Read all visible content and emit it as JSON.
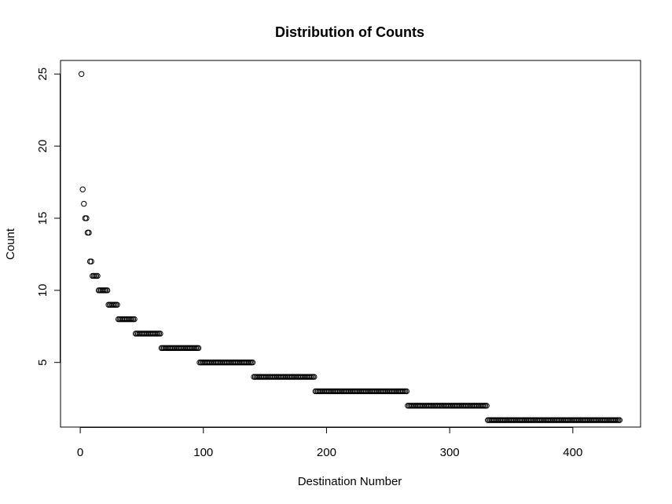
{
  "chart_data": {
    "type": "scatter",
    "title": "Distribution of Counts",
    "xlabel": "Destination Number",
    "ylabel": "Count",
    "xlim": [
      -16,
      455
    ],
    "ylim": [
      0.52,
      25.94
    ],
    "x_ticks": [
      0,
      100,
      200,
      300,
      400
    ],
    "x_tick_labels": [
      "0",
      "100",
      "200",
      "300",
      "400"
    ],
    "y_ticks": [
      5,
      10,
      15,
      20,
      25
    ],
    "y_tick_labels": [
      "5",
      "10",
      "15",
      "20",
      "25"
    ],
    "grid": false,
    "legend": "none",
    "marker": "open-circle",
    "marker_color": "#000000",
    "runs": [
      {
        "count": 25,
        "x_start": 1,
        "x_end": 1
      },
      {
        "count": 17,
        "x_start": 2,
        "x_end": 2
      },
      {
        "count": 16,
        "x_start": 3,
        "x_end": 3
      },
      {
        "count": 15,
        "x_start": 4,
        "x_end": 5
      },
      {
        "count": 14,
        "x_start": 6,
        "x_end": 7
      },
      {
        "count": 12,
        "x_start": 8,
        "x_end": 9
      },
      {
        "count": 11,
        "x_start": 10,
        "x_end": 14
      },
      {
        "count": 10,
        "x_start": 15,
        "x_end": 22
      },
      {
        "count": 9,
        "x_start": 23,
        "x_end": 30
      },
      {
        "count": 8,
        "x_start": 31,
        "x_end": 44
      },
      {
        "count": 7,
        "x_start": 45,
        "x_end": 65
      },
      {
        "count": 6,
        "x_start": 66,
        "x_end": 96
      },
      {
        "count": 5,
        "x_start": 97,
        "x_end": 140
      },
      {
        "count": 4,
        "x_start": 141,
        "x_end": 190
      },
      {
        "count": 3,
        "x_start": 191,
        "x_end": 265
      },
      {
        "count": 2,
        "x_start": 266,
        "x_end": 330
      },
      {
        "count": 1,
        "x_start": 331,
        "x_end": 438
      }
    ]
  }
}
